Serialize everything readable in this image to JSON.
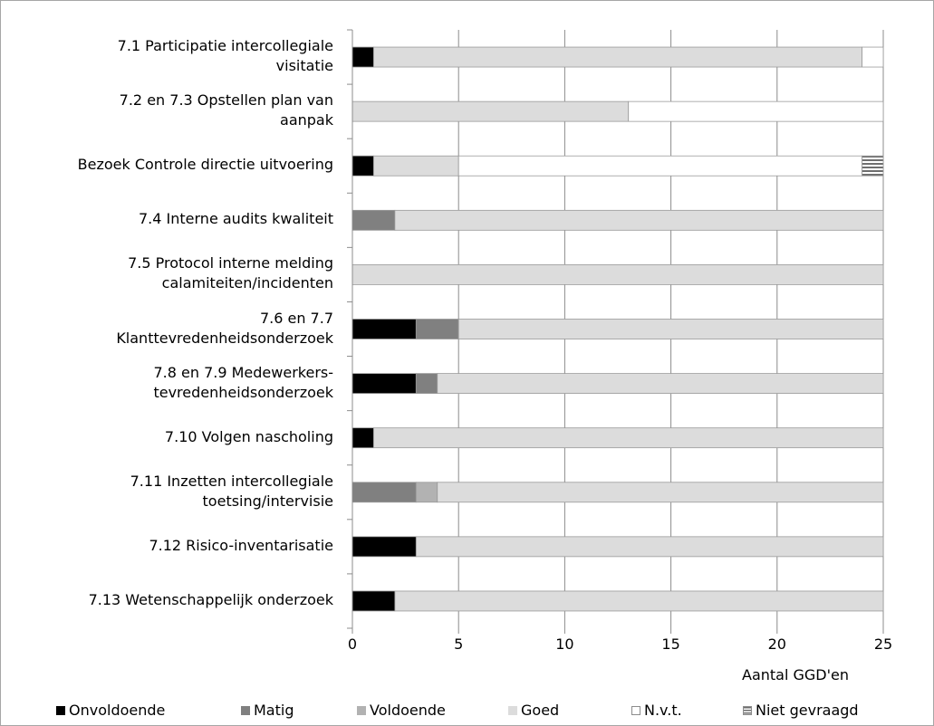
{
  "chart_data": {
    "type": "bar",
    "orientation": "horizontal",
    "stacked": true,
    "categories": [
      [
        "7.1 Participatie intercollegiale",
        "visitatie"
      ],
      [
        "7.2 en 7.3 Opstellen plan van",
        "aanpak"
      ],
      [
        "Bezoek Controle directie uitvoering"
      ],
      [
        "7.4 Interne audits kwaliteit"
      ],
      [
        "7.5 Protocol interne melding",
        "calamiteiten/incidenten"
      ],
      [
        "7.6 en 7.7",
        "Klanttevredenheidsonderzoek"
      ],
      [
        "7.8 en 7.9 Medewerkers-",
        "tevredenheidsonderzoek"
      ],
      [
        "7.10  Volgen nascholing"
      ],
      [
        "7.11 Inzetten intercollegiale",
        "toetsing/intervisie"
      ],
      [
        "7.12 Risico-inventarisatie"
      ],
      [
        "7.13 Wetenschappelijk onderzoek"
      ]
    ],
    "series": [
      {
        "name": "Onvoldoende",
        "color": "#000000",
        "values": [
          1,
          0,
          1,
          0,
          0,
          3,
          3,
          1,
          0,
          3,
          2
        ]
      },
      {
        "name": "Matig",
        "color": "#808080",
        "values": [
          0,
          0,
          0,
          2,
          0,
          2,
          1,
          0,
          3,
          0,
          0
        ]
      },
      {
        "name": "Voldoende",
        "color": "#b2b2b2",
        "values": [
          0,
          0,
          0,
          0,
          0,
          0,
          0,
          0,
          1,
          0,
          0
        ]
      },
      {
        "name": "Goed",
        "color": "#dcdcdc",
        "values": [
          23,
          13,
          4,
          23,
          25,
          20,
          21,
          24,
          21,
          22,
          23
        ]
      },
      {
        "name": "N.v.t.",
        "color": "#ffffff",
        "values": [
          1,
          12,
          19,
          0,
          0,
          0,
          0,
          0,
          0,
          0,
          0
        ]
      },
      {
        "name": "Niet gevraagd",
        "color": "#b8b8b8",
        "pattern": "horizontal-stripes",
        "values": [
          0,
          0,
          1,
          0,
          0,
          0,
          0,
          0,
          0,
          0,
          0
        ]
      }
    ],
    "xlim": [
      0,
      25
    ],
    "xticks": [
      "0",
      "5",
      "10",
      "15",
      "20",
      "25"
    ],
    "xlabel": "Aantal GGD'en",
    "ylabel": "",
    "title": "",
    "grid": "vertical",
    "legend_position": "bottom"
  }
}
